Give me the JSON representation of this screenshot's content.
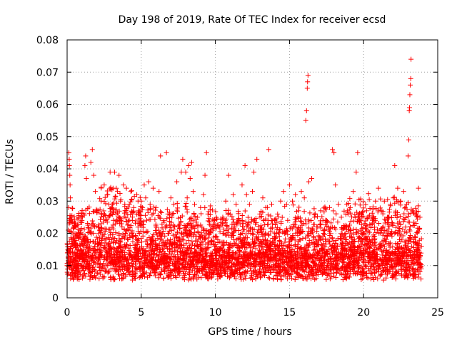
{
  "chart_data": {
    "type": "scatter",
    "title": "Day 198 of 2019, Rate Of TEC Index for receiver ecsd",
    "xlabel": "GPS time / hours",
    "ylabel": "ROTI / TECUs",
    "xlim": [
      0,
      25
    ],
    "ylim": [
      0,
      0.08
    ],
    "x_ticks": [
      0,
      5,
      10,
      15,
      20,
      25
    ],
    "x_tick_labels": [
      "0",
      "5",
      "10",
      "15",
      "20",
      "25"
    ],
    "y_ticks": [
      0,
      0.01,
      0.02,
      0.03,
      0.04,
      0.05,
      0.06,
      0.07,
      0.08
    ],
    "y_tick_labels": [
      "0",
      "0.01",
      "0.02",
      "0.03",
      "0.04",
      "0.05",
      "0.06",
      "0.07",
      "0.08"
    ],
    "grid": true,
    "marker": "plus",
    "color": "#ff0000",
    "series": [
      {
        "name": "ROTI",
        "points": [
          [
            0.0,
            0.01
          ],
          [
            0.05,
            0.015
          ],
          [
            0.08,
            0.021
          ],
          [
            0.1,
            0.028
          ],
          [
            0.12,
            0.045
          ],
          [
            0.14,
            0.043
          ],
          [
            0.15,
            0.041
          ],
          [
            0.18,
            0.038
          ],
          [
            0.2,
            0.035
          ],
          [
            0.22,
            0.031
          ],
          [
            0.25,
            0.025
          ],
          [
            0.3,
            0.018
          ],
          [
            0.35,
            0.009
          ],
          [
            0.4,
            0.012
          ],
          [
            0.5,
            0.022
          ],
          [
            0.55,
            0.017
          ],
          [
            0.6,
            0.01
          ],
          [
            0.7,
            0.013
          ],
          [
            0.8,
            0.02
          ],
          [
            0.9,
            0.016
          ],
          [
            1.0,
            0.024
          ],
          [
            1.1,
            0.012
          ],
          [
            1.2,
            0.041
          ],
          [
            1.25,
            0.044
          ],
          [
            1.3,
            0.037
          ],
          [
            1.4,
            0.018
          ],
          [
            1.5,
            0.009
          ],
          [
            1.6,
            0.042
          ],
          [
            1.7,
            0.046
          ],
          [
            1.8,
            0.038
          ],
          [
            1.9,
            0.033
          ],
          [
            2.0,
            0.027
          ],
          [
            2.1,
            0.022
          ],
          [
            2.2,
            0.014
          ],
          [
            2.3,
            0.03
          ],
          [
            2.4,
            0.019
          ],
          [
            2.5,
            0.035
          ],
          [
            2.6,
            0.024
          ],
          [
            2.7,
            0.032
          ],
          [
            2.8,
            0.016
          ],
          [
            2.9,
            0.039
          ],
          [
            3.0,
            0.028
          ],
          [
            3.1,
            0.034
          ],
          [
            3.2,
            0.039
          ],
          [
            3.3,
            0.026
          ],
          [
            3.4,
            0.033
          ],
          [
            3.5,
            0.038
          ],
          [
            3.6,
            0.03
          ],
          [
            3.7,
            0.022
          ],
          [
            3.8,
            0.035
          ],
          [
            3.9,
            0.027
          ],
          [
            4.0,
            0.034
          ],
          [
            4.1,
            0.021
          ],
          [
            4.2,
            0.029
          ],
          [
            4.3,
            0.033
          ],
          [
            4.4,
            0.024
          ],
          [
            4.5,
            0.028
          ],
          [
            4.6,
            0.019
          ],
          [
            4.7,
            0.032
          ],
          [
            4.8,
            0.026
          ],
          [
            4.9,
            0.023
          ],
          [
            5.0,
            0.03
          ],
          [
            5.2,
            0.035
          ],
          [
            5.3,
            0.031
          ],
          [
            5.5,
            0.036
          ],
          [
            5.6,
            0.029
          ],
          [
            5.8,
            0.034
          ],
          [
            6.0,
            0.028
          ],
          [
            6.2,
            0.033
          ],
          [
            6.3,
            0.044
          ],
          [
            6.5,
            0.024
          ],
          [
            6.7,
            0.045
          ],
          [
            6.8,
            0.026
          ],
          [
            7.0,
            0.031
          ],
          [
            7.2,
            0.029
          ],
          [
            7.4,
            0.036
          ],
          [
            7.5,
            0.022
          ],
          [
            7.7,
            0.039
          ],
          [
            7.8,
            0.043
          ],
          [
            8.0,
            0.039
          ],
          [
            8.1,
            0.031
          ],
          [
            8.2,
            0.041
          ],
          [
            8.3,
            0.037
          ],
          [
            8.4,
            0.042
          ],
          [
            8.5,
            0.033
          ],
          [
            8.6,
            0.029
          ],
          [
            8.8,
            0.025
          ],
          [
            9.0,
            0.028
          ],
          [
            9.2,
            0.032
          ],
          [
            9.3,
            0.038
          ],
          [
            9.4,
            0.045
          ],
          [
            9.5,
            0.026
          ],
          [
            9.7,
            0.021
          ],
          [
            9.9,
            0.024
          ],
          [
            10.1,
            0.019
          ],
          [
            10.3,
            0.022
          ],
          [
            10.5,
            0.025
          ],
          [
            10.7,
            0.03
          ],
          [
            10.9,
            0.038
          ],
          [
            11.0,
            0.026
          ],
          [
            11.2,
            0.032
          ],
          [
            11.4,
            0.029
          ],
          [
            11.6,
            0.024
          ],
          [
            11.8,
            0.035
          ],
          [
            12.0,
            0.041
          ],
          [
            12.1,
            0.032
          ],
          [
            12.3,
            0.029
          ],
          [
            12.5,
            0.033
          ],
          [
            12.6,
            0.039
          ],
          [
            12.8,
            0.043
          ],
          [
            13.0,
            0.026
          ],
          [
            13.2,
            0.031
          ],
          [
            13.4,
            0.028
          ],
          [
            13.6,
            0.046
          ],
          [
            13.8,
            0.029
          ],
          [
            14.0,
            0.024
          ],
          [
            14.2,
            0.026
          ],
          [
            14.4,
            0.03
          ],
          [
            14.6,
            0.033
          ],
          [
            14.8,
            0.029
          ],
          [
            15.0,
            0.035
          ],
          [
            15.2,
            0.03
          ],
          [
            15.4,
            0.032
          ],
          [
            15.6,
            0.027
          ],
          [
            15.8,
            0.033
          ],
          [
            16.0,
            0.031
          ],
          [
            16.1,
            0.055
          ],
          [
            16.15,
            0.058
          ],
          [
            16.2,
            0.065
          ],
          [
            16.22,
            0.067
          ],
          [
            16.25,
            0.069
          ],
          [
            16.3,
            0.036
          ],
          [
            16.5,
            0.037
          ],
          [
            16.7,
            0.025
          ],
          [
            16.9,
            0.022
          ],
          [
            17.1,
            0.027
          ],
          [
            17.3,
            0.02
          ],
          [
            17.5,
            0.024
          ],
          [
            17.7,
            0.028
          ],
          [
            17.9,
            0.046
          ],
          [
            18.0,
            0.045
          ],
          [
            18.1,
            0.035
          ],
          [
            18.3,
            0.029
          ],
          [
            18.5,
            0.025
          ],
          [
            18.7,
            0.022
          ],
          [
            18.9,
            0.027
          ],
          [
            19.1,
            0.028
          ],
          [
            19.3,
            0.033
          ],
          [
            19.5,
            0.039
          ],
          [
            19.6,
            0.045
          ],
          [
            19.8,
            0.024
          ],
          [
            20.0,
            0.02
          ],
          [
            20.2,
            0.027
          ],
          [
            20.4,
            0.018
          ],
          [
            20.6,
            0.023
          ],
          [
            20.8,
            0.03
          ],
          [
            21.0,
            0.034
          ],
          [
            21.2,
            0.027
          ],
          [
            21.4,
            0.03
          ],
          [
            21.6,
            0.025
          ],
          [
            21.8,
            0.029
          ],
          [
            22.0,
            0.031
          ],
          [
            22.1,
            0.041
          ],
          [
            22.3,
            0.034
          ],
          [
            22.5,
            0.03
          ],
          [
            22.7,
            0.033
          ],
          [
            22.9,
            0.029
          ],
          [
            23.0,
            0.044
          ],
          [
            23.05,
            0.049
          ],
          [
            23.08,
            0.058
          ],
          [
            23.1,
            0.059
          ],
          [
            23.12,
            0.063
          ],
          [
            23.15,
            0.066
          ],
          [
            23.18,
            0.068
          ],
          [
            23.2,
            0.074
          ],
          [
            23.3,
            0.027
          ],
          [
            23.5,
            0.019
          ],
          [
            23.7,
            0.034
          ],
          [
            23.8,
            0.025
          ],
          [
            23.9,
            0.016
          ]
        ]
      }
    ]
  }
}
